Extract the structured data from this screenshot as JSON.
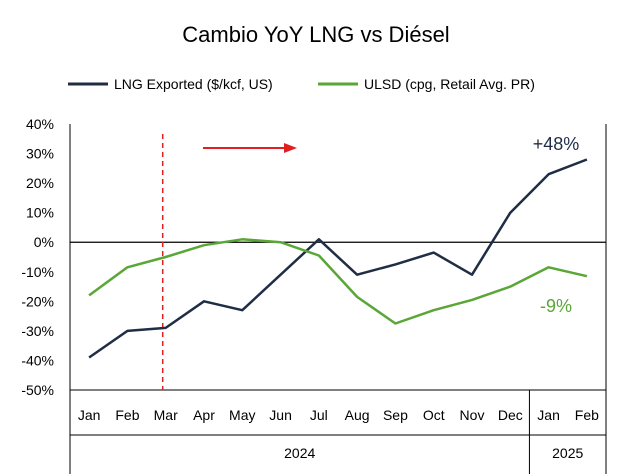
{
  "chart_data": {
    "type": "line",
    "title": "Cambio YoY LNG vs Diésel",
    "categories": [
      "Jan",
      "Feb",
      "Mar",
      "Apr",
      "May",
      "Jun",
      "Jul",
      "Aug",
      "Sep",
      "Oct",
      "Nov",
      "Dec",
      "Jan",
      "Feb"
    ],
    "year_groups": [
      {
        "label": "2024",
        "count": 12
      },
      {
        "label": "2025",
        "count": 2
      }
    ],
    "ylim": [
      -50,
      40
    ],
    "yticks": [
      -50,
      -40,
      -30,
      -20,
      -10,
      0,
      10,
      20,
      30,
      40
    ],
    "ytick_labels": [
      "-50%",
      "-40%",
      "-30%",
      "-20%",
      "-10%",
      "0%",
      "10%",
      "20%",
      "30%",
      "40%"
    ],
    "grid": false,
    "legend_position": "top",
    "series": [
      {
        "name": "LNG Exported ($/kcf, US)",
        "color": "#1f2d45",
        "values": [
          -39,
          -30,
          -29,
          -20,
          -23,
          -11,
          1,
          -11,
          -7.5,
          -3.5,
          -11,
          10,
          23,
          28
        ]
      },
      {
        "name": "ULSD (cpg, Retail Avg. PR)",
        "color": "#5aa636",
        "values": [
          -18,
          -8.5,
          -5,
          -1,
          1,
          0,
          -4.5,
          -18.5,
          -27.5,
          -23,
          -19.5,
          -15,
          -8.5,
          -11.5
        ]
      }
    ],
    "annotations": [
      {
        "text": "+48%",
        "series": 0,
        "color": "#1f2d45"
      },
      {
        "text": "-9%",
        "series": 1,
        "color": "#5aa636"
      }
    ],
    "marker_line_category": 2,
    "marker_line_color": "#e02020",
    "arrow_color": "#e02020"
  }
}
